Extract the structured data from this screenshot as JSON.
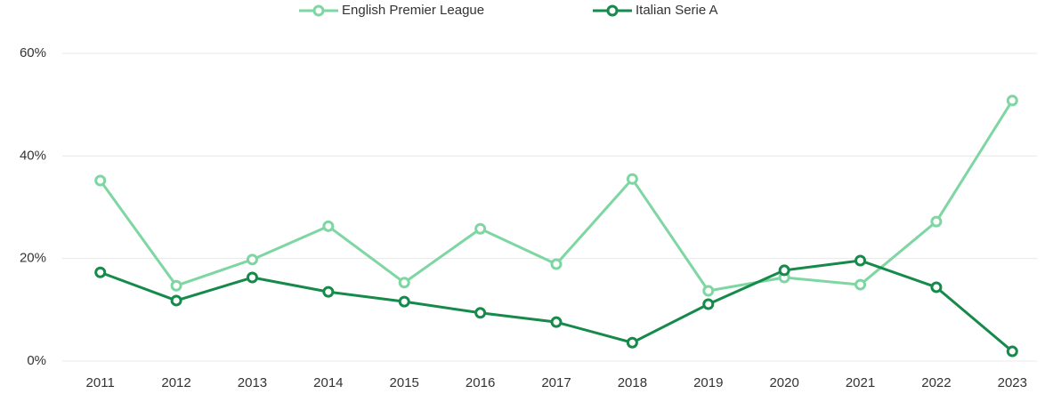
{
  "chart_data": {
    "type": "line",
    "categories": [
      "2011",
      "2012",
      "2013",
      "2014",
      "2015",
      "2016",
      "2017",
      "2018",
      "2019",
      "2020",
      "2021",
      "2022",
      "2023"
    ],
    "series": [
      {
        "name": "English Premier League",
        "color": "#7ed6a2",
        "values": [
          35.2,
          14.7,
          19.8,
          26.3,
          15.3,
          25.8,
          18.9,
          35.5,
          13.7,
          16.3,
          14.9,
          27.2,
          50.8
        ]
      },
      {
        "name": "Italian Serie A",
        "color": "#168a4a",
        "values": [
          17.3,
          11.8,
          16.3,
          13.5,
          11.6,
          9.4,
          7.6,
          3.6,
          11.1,
          17.7,
          19.6,
          14.4,
          1.9
        ]
      }
    ],
    "ylim": [
      0,
      60
    ],
    "yticks": [
      {
        "value": 0,
        "label": "0%"
      },
      {
        "value": 20,
        "label": "20%"
      },
      {
        "value": 40,
        "label": "40%"
      },
      {
        "value": 60,
        "label": "60%"
      }
    ],
    "grid": true,
    "legend": "top"
  }
}
